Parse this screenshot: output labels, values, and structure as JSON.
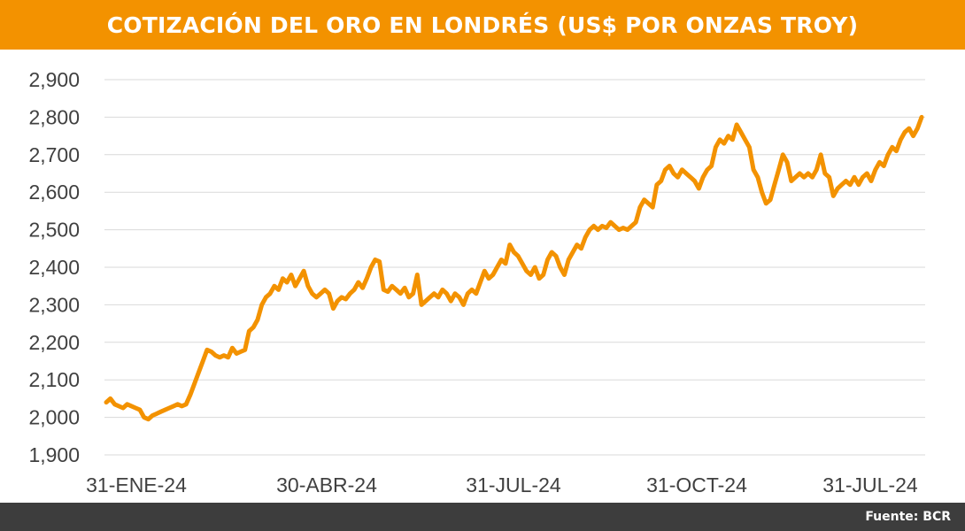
{
  "title": "COTIZACIÓN DEL ORO EN LONDRÉS (US$ POR ONZAS TROY)",
  "source": "Fuente: BCR",
  "colors": {
    "accent": "#f39200",
    "line": "#f39200",
    "footer": "#3d3d3d",
    "grid": "#d9d9d9",
    "text": "#404040"
  },
  "chart_data": {
    "type": "line",
    "ylim": [
      1900,
      2900
    ],
    "yticks": [
      1900,
      2000,
      2100,
      2200,
      2300,
      2400,
      2500,
      2600,
      2700,
      2800,
      2900
    ],
    "ytick_labels": [
      "1,900",
      "2,000",
      "2,100",
      "2,200",
      "2,300",
      "2,400",
      "2,500",
      "2,600",
      "2,700",
      "2,800",
      "2,900"
    ],
    "xtick_labels": [
      "31-ENE-24",
      "30-ABR-24",
      "31-JUL-24",
      "31-OCT-24",
      "31-JUL-24"
    ],
    "grid": true,
    "legend": "none",
    "series": [
      {
        "values": [
          2040,
          2050,
          2035,
          2030,
          2025,
          2035,
          2030,
          2025,
          2020,
          2000,
          1995,
          2005,
          2010,
          2015,
          2020,
          2025,
          2030,
          2035,
          2030,
          2035,
          2060,
          2090,
          2120,
          2150,
          2180,
          2175,
          2165,
          2160,
          2165,
          2160,
          2185,
          2170,
          2175,
          2180,
          2230,
          2240,
          2260,
          2300,
          2320,
          2330,
          2350,
          2340,
          2370,
          2360,
          2380,
          2350,
          2370,
          2390,
          2350,
          2330,
          2320,
          2330,
          2340,
          2330,
          2290,
          2310,
          2320,
          2315,
          2330,
          2340,
          2360,
          2345,
          2370,
          2400,
          2420,
          2415,
          2340,
          2335,
          2350,
          2340,
          2330,
          2345,
          2320,
          2330,
          2380,
          2300,
          2310,
          2320,
          2330,
          2320,
          2340,
          2330,
          2310,
          2330,
          2320,
          2300,
          2330,
          2340,
          2330,
          2360,
          2390,
          2370,
          2380,
          2400,
          2420,
          2410,
          2460,
          2440,
          2430,
          2410,
          2390,
          2380,
          2400,
          2370,
          2380,
          2420,
          2440,
          2430,
          2400,
          2380,
          2420,
          2440,
          2460,
          2450,
          2480,
          2500,
          2510,
          2500,
          2510,
          2505,
          2520,
          2510,
          2500,
          2505,
          2500,
          2510,
          2520,
          2560,
          2580,
          2570,
          2560,
          2620,
          2630,
          2660,
          2670,
          2650,
          2640,
          2660,
          2650,
          2640,
          2630,
          2610,
          2640,
          2660,
          2670,
          2720,
          2740,
          2730,
          2750,
          2740,
          2780,
          2760,
          2740,
          2720,
          2660,
          2640,
          2600,
          2570,
          2580,
          2620,
          2660,
          2700,
          2680,
          2630,
          2640,
          2650,
          2640,
          2650,
          2640,
          2660,
          2700,
          2650,
          2640,
          2590,
          2610,
          2620,
          2630,
          2620,
          2640,
          2620,
          2640,
          2650,
          2630,
          2660,
          2680,
          2670,
          2700,
          2720,
          2710,
          2740,
          2760,
          2770,
          2750,
          2770,
          2800
        ]
      }
    ]
  }
}
